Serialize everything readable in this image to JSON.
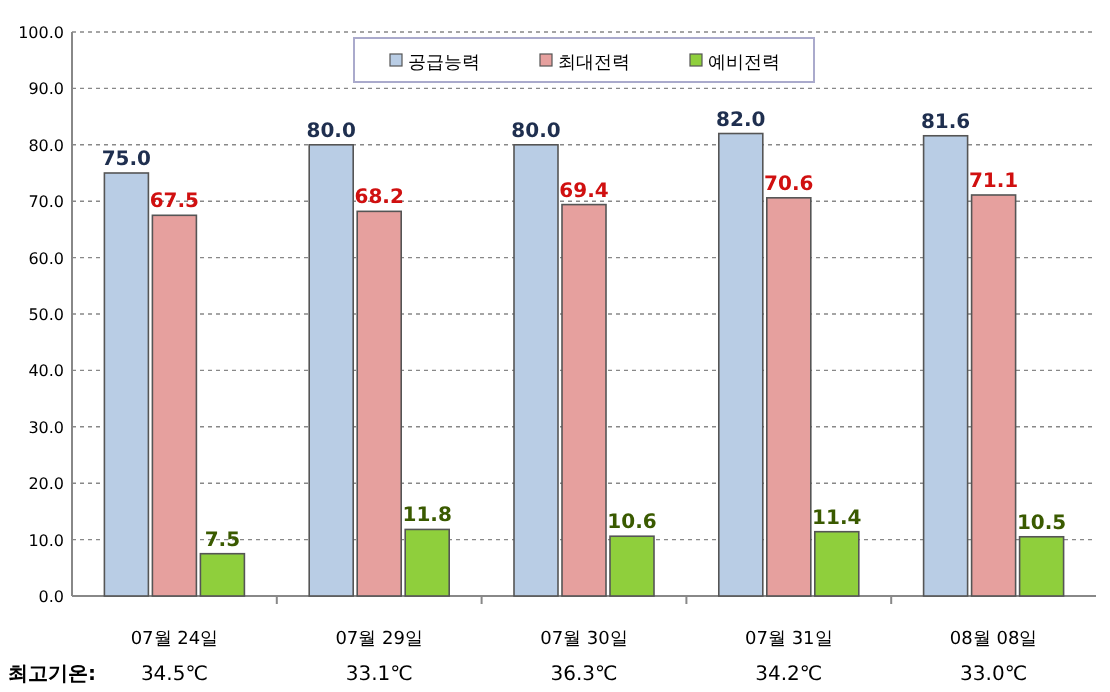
{
  "chart_data": {
    "type": "bar",
    "categories": [
      "07월 24일",
      "07월 29일",
      "07월 30일",
      "07월 31일",
      "08월 08일"
    ],
    "series": [
      {
        "name": "공급능력",
        "color": "#b9cde5",
        "values": [
          75.0,
          80.0,
          80.0,
          82.0,
          81.6
        ],
        "value_labels": [
          "75.0",
          "80.0",
          "80.0",
          "82.0",
          "81.6"
        ]
      },
      {
        "name": "최대전력",
        "color": "#e6a09e",
        "values": [
          67.5,
          68.2,
          69.4,
          70.6,
          71.1
        ],
        "value_labels": [
          "67.5",
          "68.2",
          "69.4",
          "70.6",
          "71.1"
        ]
      },
      {
        "name": "예비전력",
        "color": "#8fcf3c",
        "values": [
          7.5,
          11.8,
          10.6,
          11.4,
          10.5
        ],
        "value_labels": [
          "7.5",
          "11.8",
          "10.6",
          "11.4",
          "10.5"
        ]
      }
    ],
    "ylim": [
      0,
      100
    ],
    "yticks": [
      {
        "value": 0,
        "label": "0.0"
      },
      {
        "value": 10,
        "label": "10.0"
      },
      {
        "value": 20,
        "label": "20.0"
      },
      {
        "value": 30,
        "label": "30.0"
      },
      {
        "value": 40,
        "label": "40.0"
      },
      {
        "value": 50,
        "label": "50.0"
      },
      {
        "value": 60,
        "label": "60.0"
      },
      {
        "value": 70,
        "label": "70.0"
      },
      {
        "value": 80,
        "label": "80.0"
      },
      {
        "value": 90,
        "label": "90.0"
      },
      {
        "value": 100,
        "label": "100.0"
      }
    ],
    "grid": "y",
    "legend": "top",
    "annotations": [
      "최고기온:",
      "34.5℃",
      "33.1℃",
      "36.3℃",
      "34.2℃",
      "33.0℃"
    ]
  }
}
